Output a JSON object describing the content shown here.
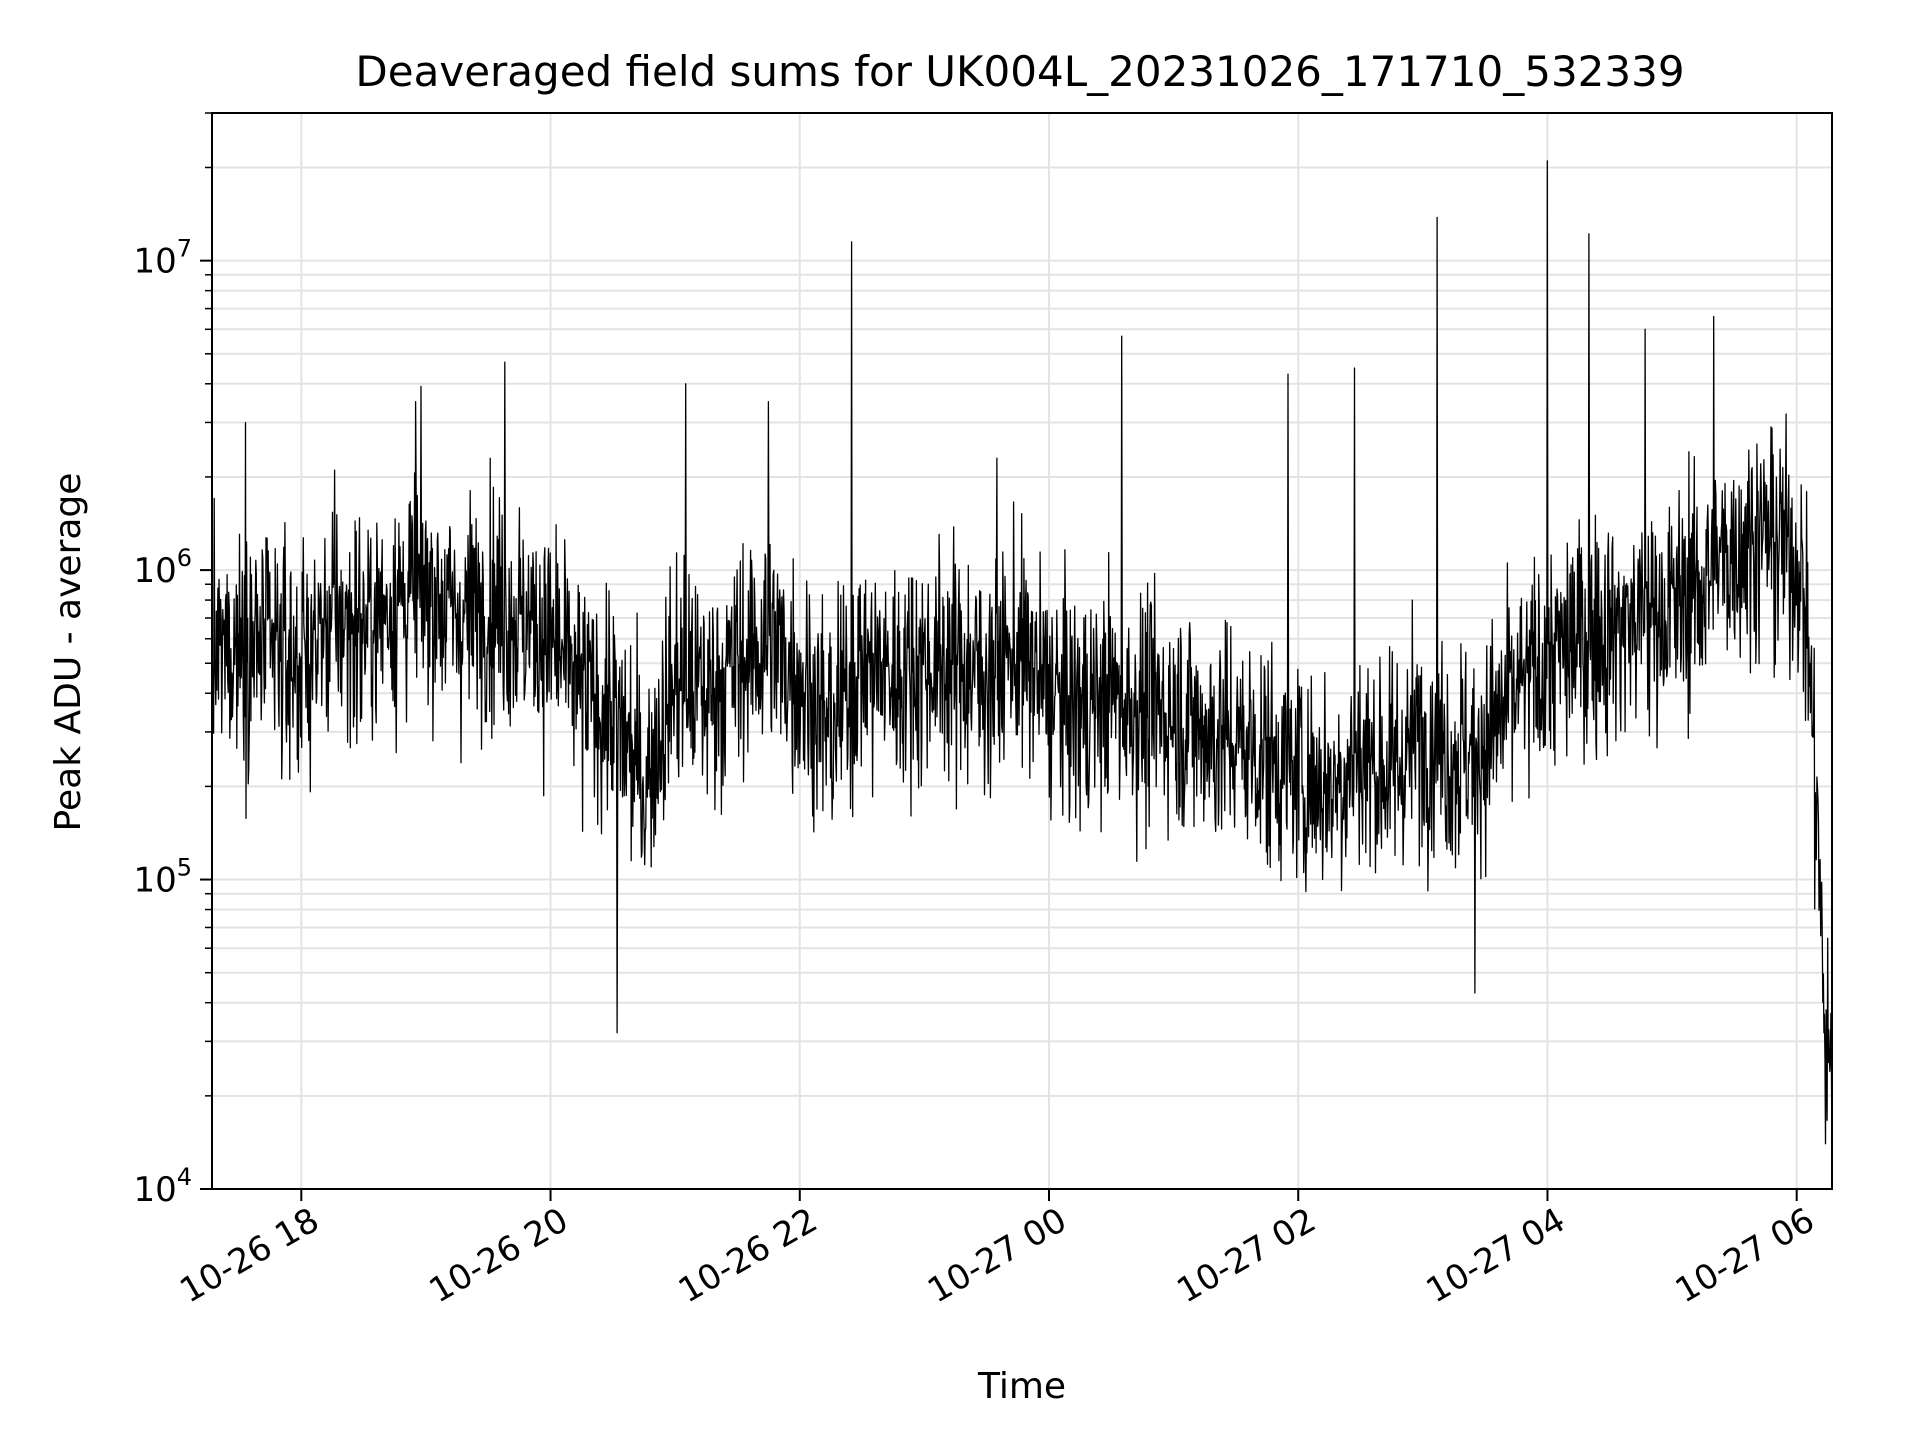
{
  "chart_data": {
    "type": "line",
    "title": "Deaveraged field sums for UK004L_20231026_171710_532339",
    "xlabel": "Time",
    "ylabel": "Peak ADU - average",
    "yscale": "log",
    "ylim": [
      10000,
      30000000
    ],
    "xlim": [
      "2023-10-26 17:17",
      "2023-10-27 06:17"
    ],
    "grid": true,
    "legend": "none",
    "line_color": "#000000",
    "x_ticks": [
      {
        "value": "2023-10-26 18:00",
        "label": "10-26 18"
      },
      {
        "value": "2023-10-26 20:00",
        "label": "10-26 20"
      },
      {
        "value": "2023-10-26 22:00",
        "label": "10-26 22"
      },
      {
        "value": "2023-10-27 00:00",
        "label": "10-27 00"
      },
      {
        "value": "2023-10-27 02:00",
        "label": "10-27 02"
      },
      {
        "value": "2023-10-27 04:00",
        "label": "10-27 04"
      },
      {
        "value": "2023-10-27 06:00",
        "label": "10-27 06"
      }
    ],
    "y_ticks": [
      {
        "value": 10000,
        "base": "10",
        "exp": "4"
      },
      {
        "value": 100000,
        "base": "10",
        "exp": "5"
      },
      {
        "value": 1000000,
        "base": "10",
        "exp": "6"
      },
      {
        "value": 10000000,
        "base": "10",
        "exp": "7"
      }
    ],
    "series": [
      {
        "x": [
          "2023-10-26 17:17",
          "2023-10-26 17:30",
          "2023-10-26 17:45",
          "2023-10-26 18:00",
          "2023-10-26 18:15",
          "2023-10-26 18:30",
          "2023-10-26 18:45",
          "2023-10-26 19:00",
          "2023-10-26 19:15",
          "2023-10-26 19:30",
          "2023-10-26 19:45",
          "2023-10-26 20:00",
          "2023-10-26 20:15",
          "2023-10-26 20:30",
          "2023-10-26 20:45",
          "2023-10-26 21:00",
          "2023-10-26 21:15",
          "2023-10-26 21:30",
          "2023-10-26 21:45",
          "2023-10-26 22:00",
          "2023-10-26 22:15",
          "2023-10-26 22:30",
          "2023-10-26 22:45",
          "2023-10-26 23:00",
          "2023-10-26 23:15",
          "2023-10-26 23:30",
          "2023-10-26 23:45",
          "2023-10-27 00:00",
          "2023-10-27 00:15",
          "2023-10-27 00:30",
          "2023-10-27 00:45",
          "2023-10-27 01:00",
          "2023-10-27 01:15",
          "2023-10-27 01:30",
          "2023-10-27 01:45",
          "2023-10-27 02:00",
          "2023-10-27 02:15",
          "2023-10-27 02:30",
          "2023-10-27 02:45",
          "2023-10-27 03:00",
          "2023-10-27 03:15",
          "2023-10-27 03:30",
          "2023-10-27 03:45",
          "2023-10-27 04:00",
          "2023-10-27 04:15",
          "2023-10-27 04:30",
          "2023-10-27 04:45",
          "2023-10-27 05:00",
          "2023-10-27 05:15",
          "2023-10-27 05:30",
          "2023-10-27 05:45",
          "2023-10-27 06:00",
          "2023-10-27 06:05",
          "2023-10-27 06:10",
          "2023-10-27 06:13",
          "2023-10-27 06:17"
        ],
        "y": [
          500000,
          600000,
          550000,
          500000,
          700000,
          650000,
          800000,
          900000,
          700000,
          800000,
          700000,
          600000,
          400000,
          350000,
          200000,
          450000,
          400000,
          500000,
          600000,
          450000,
          300000,
          500000,
          450000,
          500000,
          500000,
          450000,
          550000,
          400000,
          350000,
          400000,
          350000,
          350000,
          300000,
          280000,
          250000,
          220000,
          200000,
          250000,
          220000,
          300000,
          250000,
          280000,
          400000,
          500000,
          600000,
          650000,
          700000,
          750000,
          900000,
          1200000,
          1300000,
          1100000,
          700000,
          150000,
          40000,
          20000
        ],
        "spikes": [
          {
            "x": "2023-10-26 17:33",
            "y": 3000000
          },
          {
            "x": "2023-10-26 18:55",
            "y": 3500000
          },
          {
            "x": "2023-10-26 19:38",
            "y": 4700000
          },
          {
            "x": "2023-10-26 20:32",
            "y": 32000
          },
          {
            "x": "2023-10-26 21:05",
            "y": 4000000
          },
          {
            "x": "2023-10-26 21:45",
            "y": 3500000
          },
          {
            "x": "2023-10-26 22:25",
            "y": 11500000
          },
          {
            "x": "2023-10-26 23:35",
            "y": 2300000
          },
          {
            "x": "2023-10-27 00:35",
            "y": 5700000
          },
          {
            "x": "2023-10-27 01:55",
            "y": 4300000
          },
          {
            "x": "2023-10-27 02:27",
            "y": 4500000
          },
          {
            "x": "2023-10-27 03:07",
            "y": 13800000
          },
          {
            "x": "2023-10-27 03:25",
            "y": 43000
          },
          {
            "x": "2023-10-27 04:00",
            "y": 21000000
          },
          {
            "x": "2023-10-27 04:20",
            "y": 12200000
          },
          {
            "x": "2023-10-27 04:47",
            "y": 6000000
          },
          {
            "x": "2023-10-27 05:20",
            "y": 6600000
          },
          {
            "x": "2023-10-27 06:14",
            "y": 14000
          }
        ]
      }
    ]
  }
}
